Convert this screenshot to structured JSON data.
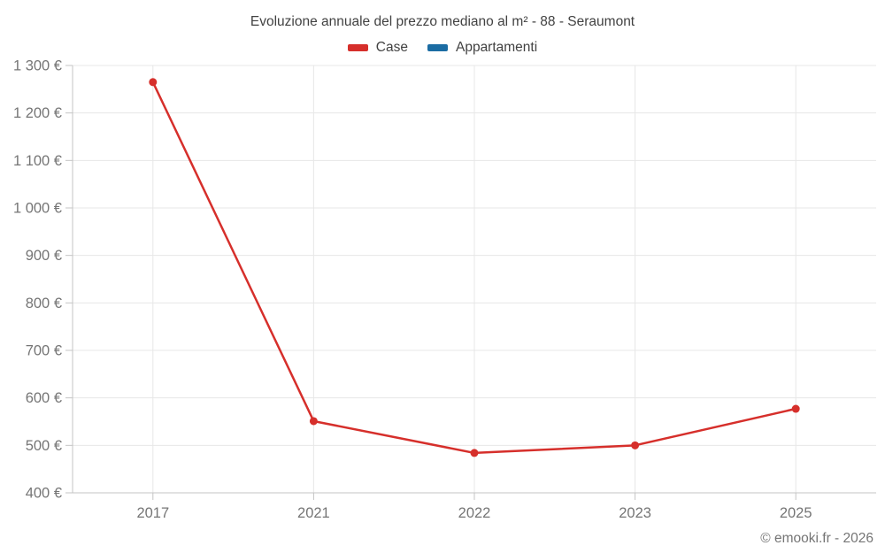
{
  "chart_data": {
    "type": "line",
    "title": "Evoluzione annuale del prezzo mediano al m² - 88 - Seraumont",
    "categories": [
      "2017",
      "2021",
      "2022",
      "2023",
      "2025"
    ],
    "series": [
      {
        "name": "Case",
        "color": "#d62f2b",
        "values": [
          1265,
          551,
          484,
          500,
          577
        ]
      },
      {
        "name": "Appartamenti",
        "color": "#1b6ca3",
        "values": []
      }
    ],
    "ylim": [
      400,
      1300
    ],
    "ytick_step": 100,
    "y_suffix": " €",
    "xlabel": "",
    "ylabel": "",
    "grid": true,
    "legend_position": "top-center",
    "colors": {
      "grid": "#e7e7e7",
      "axis": "#c4c4c4",
      "tick_text": "#757575",
      "title_text": "#424242"
    }
  },
  "footer": {
    "credit": "© emooki.fr - 2026"
  }
}
